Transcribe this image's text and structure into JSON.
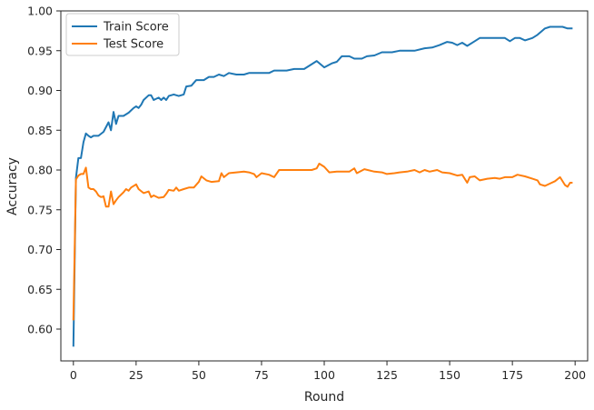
{
  "chart_data": {
    "type": "line",
    "title": "",
    "xlabel": "Round",
    "ylabel": "Accuracy",
    "xlim": [
      -5,
      205
    ],
    "ylim": [
      0.56,
      1.0
    ],
    "xticks": [
      0,
      25,
      50,
      75,
      100,
      125,
      150,
      175,
      200
    ],
    "yticks": [
      0.6,
      0.65,
      0.7,
      0.75,
      0.8,
      0.85,
      0.9,
      0.95,
      1.0
    ],
    "grid": false,
    "legend_position": "top-left",
    "series": [
      {
        "name": "Train Score",
        "color": "#1f77b4",
        "points": [
          [
            0,
            0.578
          ],
          [
            1,
            0.79
          ],
          [
            2,
            0.815
          ],
          [
            3,
            0.815
          ],
          [
            4,
            0.835
          ],
          [
            5,
            0.846
          ],
          [
            6,
            0.843
          ],
          [
            7,
            0.841
          ],
          [
            8,
            0.843
          ],
          [
            10,
            0.843
          ],
          [
            12,
            0.848
          ],
          [
            14,
            0.86
          ],
          [
            15,
            0.85
          ],
          [
            16,
            0.873
          ],
          [
            17,
            0.858
          ],
          [
            18,
            0.868
          ],
          [
            20,
            0.868
          ],
          [
            22,
            0.872
          ],
          [
            24,
            0.878
          ],
          [
            25,
            0.88
          ],
          [
            26,
            0.878
          ],
          [
            27,
            0.882
          ],
          [
            28,
            0.888
          ],
          [
            30,
            0.894
          ],
          [
            31,
            0.894
          ],
          [
            32,
            0.888
          ],
          [
            34,
            0.891
          ],
          [
            35,
            0.888
          ],
          [
            36,
            0.891
          ],
          [
            37,
            0.888
          ],
          [
            38,
            0.893
          ],
          [
            40,
            0.895
          ],
          [
            42,
            0.893
          ],
          [
            44,
            0.895
          ],
          [
            45,
            0.905
          ],
          [
            47,
            0.906
          ],
          [
            49,
            0.913
          ],
          [
            52,
            0.913
          ],
          [
            54,
            0.917
          ],
          [
            56,
            0.917
          ],
          [
            58,
            0.92
          ],
          [
            60,
            0.918
          ],
          [
            62,
            0.922
          ],
          [
            65,
            0.92
          ],
          [
            68,
            0.92
          ],
          [
            70,
            0.922
          ],
          [
            75,
            0.922
          ],
          [
            78,
            0.922
          ],
          [
            80,
            0.925
          ],
          [
            85,
            0.925
          ],
          [
            88,
            0.927
          ],
          [
            92,
            0.927
          ],
          [
            95,
            0.933
          ],
          [
            97,
            0.937
          ],
          [
            100,
            0.929
          ],
          [
            103,
            0.934
          ],
          [
            105,
            0.936
          ],
          [
            107,
            0.943
          ],
          [
            110,
            0.943
          ],
          [
            112,
            0.94
          ],
          [
            115,
            0.94
          ],
          [
            117,
            0.943
          ],
          [
            120,
            0.944
          ],
          [
            123,
            0.948
          ],
          [
            127,
            0.948
          ],
          [
            130,
            0.95
          ],
          [
            133,
            0.95
          ],
          [
            136,
            0.95
          ],
          [
            140,
            0.953
          ],
          [
            143,
            0.954
          ],
          [
            146,
            0.957
          ],
          [
            149,
            0.961
          ],
          [
            151,
            0.96
          ],
          [
            153,
            0.957
          ],
          [
            155,
            0.96
          ],
          [
            157,
            0.956
          ],
          [
            160,
            0.962
          ],
          [
            162,
            0.966
          ],
          [
            165,
            0.966
          ],
          [
            168,
            0.966
          ],
          [
            172,
            0.966
          ],
          [
            174,
            0.962
          ],
          [
            176,
            0.966
          ],
          [
            178,
            0.966
          ],
          [
            180,
            0.963
          ],
          [
            183,
            0.966
          ],
          [
            185,
            0.97
          ],
          [
            188,
            0.978
          ],
          [
            190,
            0.98
          ],
          [
            195,
            0.98
          ],
          [
            197,
            0.978
          ],
          [
            199,
            0.978
          ]
        ]
      },
      {
        "name": "Test Score",
        "color": "#ff7f0e",
        "points": [
          [
            0,
            0.611
          ],
          [
            1,
            0.788
          ],
          [
            2,
            0.793
          ],
          [
            3,
            0.795
          ],
          [
            4,
            0.795
          ],
          [
            5,
            0.803
          ],
          [
            6,
            0.778
          ],
          [
            7,
            0.776
          ],
          [
            8,
            0.776
          ],
          [
            9,
            0.773
          ],
          [
            10,
            0.768
          ],
          [
            11,
            0.766
          ],
          [
            12,
            0.767
          ],
          [
            13,
            0.754
          ],
          [
            14,
            0.754
          ],
          [
            15,
            0.773
          ],
          [
            16,
            0.757
          ],
          [
            17,
            0.762
          ],
          [
            18,
            0.766
          ],
          [
            20,
            0.772
          ],
          [
            21,
            0.776
          ],
          [
            22,
            0.774
          ],
          [
            23,
            0.778
          ],
          [
            25,
            0.782
          ],
          [
            26,
            0.776
          ],
          [
            28,
            0.771
          ],
          [
            30,
            0.773
          ],
          [
            31,
            0.766
          ],
          [
            32,
            0.768
          ],
          [
            34,
            0.765
          ],
          [
            36,
            0.766
          ],
          [
            37,
            0.77
          ],
          [
            38,
            0.775
          ],
          [
            40,
            0.774
          ],
          [
            41,
            0.778
          ],
          [
            42,
            0.774
          ],
          [
            44,
            0.776
          ],
          [
            46,
            0.778
          ],
          [
            48,
            0.778
          ],
          [
            50,
            0.785
          ],
          [
            51,
            0.792
          ],
          [
            53,
            0.787
          ],
          [
            55,
            0.785
          ],
          [
            58,
            0.786
          ],
          [
            59,
            0.796
          ],
          [
            60,
            0.791
          ],
          [
            62,
            0.796
          ],
          [
            65,
            0.797
          ],
          [
            68,
            0.798
          ],
          [
            70,
            0.797
          ],
          [
            72,
            0.795
          ],
          [
            73,
            0.791
          ],
          [
            75,
            0.796
          ],
          [
            78,
            0.794
          ],
          [
            80,
            0.791
          ],
          [
            82,
            0.8
          ],
          [
            85,
            0.8
          ],
          [
            90,
            0.8
          ],
          [
            95,
            0.8
          ],
          [
            97,
            0.802
          ],
          [
            98,
            0.808
          ],
          [
            100,
            0.804
          ],
          [
            102,
            0.797
          ],
          [
            105,
            0.798
          ],
          [
            110,
            0.798
          ],
          [
            112,
            0.802
          ],
          [
            113,
            0.796
          ],
          [
            116,
            0.801
          ],
          [
            120,
            0.798
          ],
          [
            123,
            0.797
          ],
          [
            125,
            0.795
          ],
          [
            128,
            0.796
          ],
          [
            130,
            0.797
          ],
          [
            133,
            0.798
          ],
          [
            136,
            0.8
          ],
          [
            138,
            0.797
          ],
          [
            140,
            0.8
          ],
          [
            142,
            0.798
          ],
          [
            145,
            0.8
          ],
          [
            147,
            0.797
          ],
          [
            150,
            0.796
          ],
          [
            153,
            0.793
          ],
          [
            155,
            0.794
          ],
          [
            157,
            0.784
          ],
          [
            158,
            0.791
          ],
          [
            160,
            0.792
          ],
          [
            162,
            0.787
          ],
          [
            165,
            0.789
          ],
          [
            168,
            0.79
          ],
          [
            170,
            0.789
          ],
          [
            172,
            0.791
          ],
          [
            175,
            0.791
          ],
          [
            177,
            0.794
          ],
          [
            180,
            0.792
          ],
          [
            183,
            0.789
          ],
          [
            185,
            0.787
          ],
          [
            186,
            0.782
          ],
          [
            188,
            0.78
          ],
          [
            190,
            0.783
          ],
          [
            192,
            0.786
          ],
          [
            194,
            0.791
          ],
          [
            196,
            0.781
          ],
          [
            197,
            0.779
          ],
          [
            198,
            0.784
          ],
          [
            199,
            0.784
          ]
        ]
      }
    ]
  }
}
